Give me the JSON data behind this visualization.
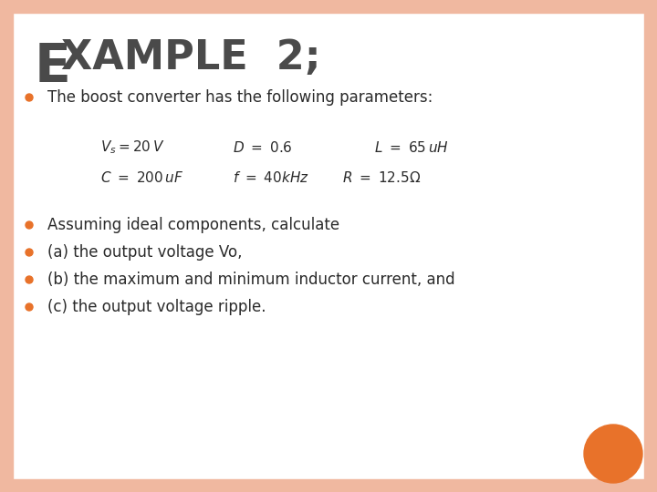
{
  "bg_color": "#ffffff",
  "border_color": "#f0b8a0",
  "orange_dot_color": "#e8722a",
  "bullet_color": "#e8722a",
  "text_color": "#2a2a2a",
  "line1": "The boost converter has the following parameters:",
  "params_row1_left": "$V_s = 20\\,V$",
  "params_row1_mid": "$D \\ = \\ 0.6$",
  "params_row1_right": "$L \\ = \\ 65\\,uH$",
  "params_row2_left": "$C \\ = \\ 200\\,uF$",
  "params_row2_mid": "$f \\ = \\ 40kHz$",
  "params_row2_right": "$R \\ = \\ 12.5\\Omega$",
  "bullet_lines": [
    "Assuming ideal components, calculate",
    "(a) the output voltage Vo,",
    "(b) the maximum and minimum inductor current, and",
    "(c) the output voltage ripple."
  ]
}
